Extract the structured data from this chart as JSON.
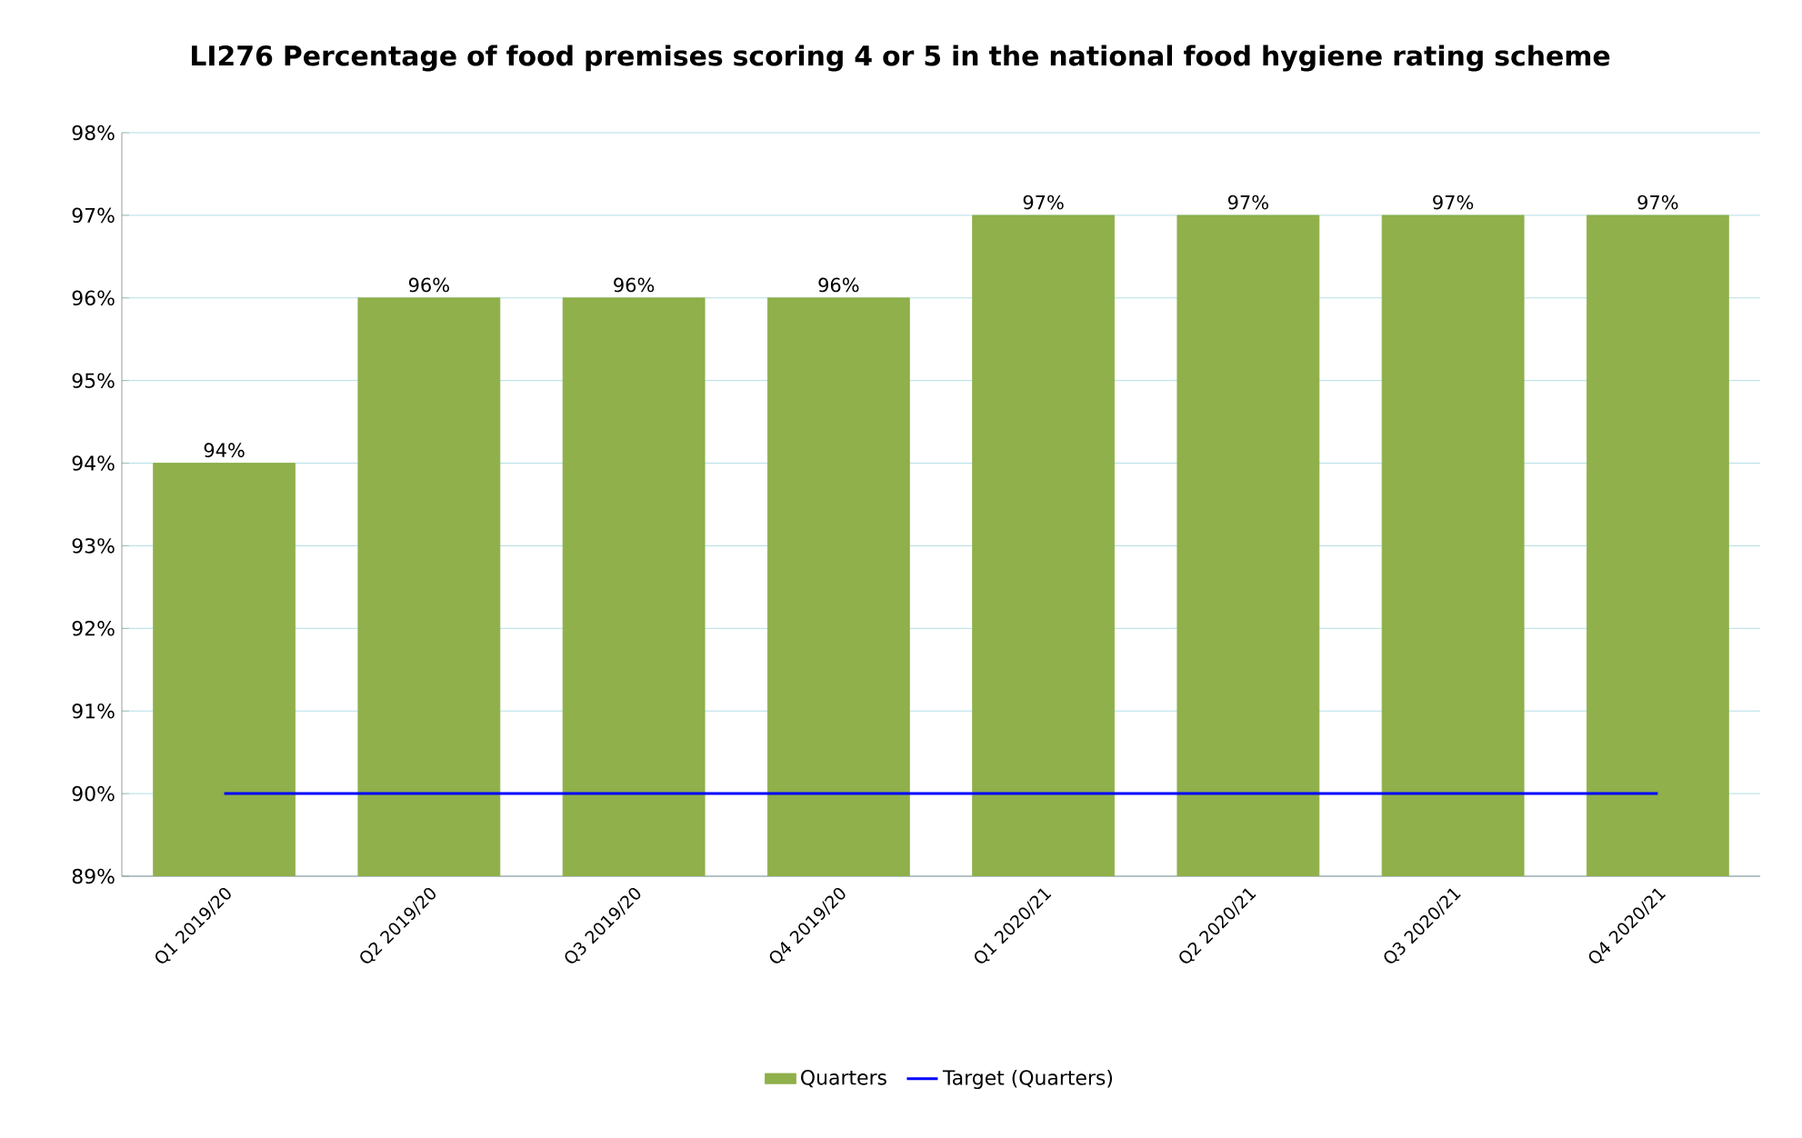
{
  "chart_data": {
    "type": "bar",
    "title": "LI276 Percentage of food premises scoring 4 or 5 in the national food hygiene rating scheme",
    "categories": [
      "Q1 2019/20",
      "Q2 2019/20",
      "Q3 2019/20",
      "Q4 2019/20",
      "Q1 2020/21",
      "Q2 2020/21",
      "Q3 2020/21",
      "Q4 2020/21"
    ],
    "series": [
      {
        "name": "Quarters",
        "color": "#8fb04a",
        "values": [
          94,
          96,
          96,
          96,
          97,
          97,
          97,
          97
        ],
        "value_labels": [
          "94%",
          "96%",
          "96%",
          "96%",
          "97%",
          "97%",
          "97%",
          "97%"
        ]
      },
      {
        "name": "Target (Quarters)",
        "type": "line",
        "color": "#0000ff",
        "values": [
          90,
          90,
          90,
          90,
          90,
          90,
          90,
          90
        ]
      }
    ],
    "ylim": [
      89,
      98
    ],
    "yticks": [
      {
        "value": 89,
        "label": "89%"
      },
      {
        "value": 90,
        "label": "90%"
      },
      {
        "value": 91,
        "label": "91%"
      },
      {
        "value": 92,
        "label": "92%"
      },
      {
        "value": 93,
        "label": "93%"
      },
      {
        "value": 94,
        "label": "94%"
      },
      {
        "value": 95,
        "label": "95%"
      },
      {
        "value": 96,
        "label": "96%"
      },
      {
        "value": 97,
        "label": "97%"
      },
      {
        "value": 98,
        "label": "98%"
      }
    ],
    "grid": "y",
    "legend": "bottom"
  }
}
